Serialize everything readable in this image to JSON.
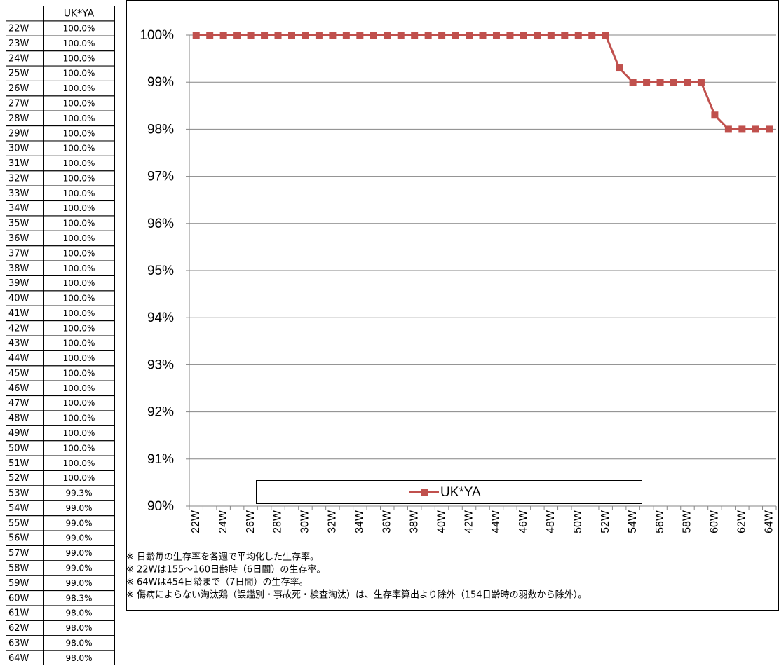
{
  "table": {
    "header": [
      "UK*YA"
    ],
    "rows": [
      [
        "22W",
        "100.0%"
      ],
      [
        "23W",
        "100.0%"
      ],
      [
        "24W",
        "100.0%"
      ],
      [
        "25W",
        "100.0%"
      ],
      [
        "26W",
        "100.0%"
      ],
      [
        "27W",
        "100.0%"
      ],
      [
        "28W",
        "100.0%"
      ],
      [
        "29W",
        "100.0%"
      ],
      [
        "30W",
        "100.0%"
      ],
      [
        "31W",
        "100.0%"
      ],
      [
        "32W",
        "100.0%"
      ],
      [
        "33W",
        "100.0%"
      ],
      [
        "34W",
        "100.0%"
      ],
      [
        "35W",
        "100.0%"
      ],
      [
        "36W",
        "100.0%"
      ],
      [
        "37W",
        "100.0%"
      ],
      [
        "38W",
        "100.0%"
      ],
      [
        "39W",
        "100.0%"
      ],
      [
        "40W",
        "100.0%"
      ],
      [
        "41W",
        "100.0%"
      ],
      [
        "42W",
        "100.0%"
      ],
      [
        "43W",
        "100.0%"
      ],
      [
        "44W",
        "100.0%"
      ],
      [
        "45W",
        "100.0%"
      ],
      [
        "46W",
        "100.0%"
      ],
      [
        "47W",
        "100.0%"
      ],
      [
        "48W",
        "100.0%"
      ],
      [
        "49W",
        "100.0%"
      ],
      [
        "50W",
        "100.0%"
      ],
      [
        "51W",
        "100.0%"
      ],
      [
        "52W",
        "100.0%"
      ],
      [
        "53W",
        "99.3%"
      ],
      [
        "54W",
        "99.0%"
      ],
      [
        "55W",
        "99.0%"
      ],
      [
        "56W",
        "99.0%"
      ],
      [
        "57W",
        "99.0%"
      ],
      [
        "58W",
        "99.0%"
      ],
      [
        "59W",
        "99.0%"
      ],
      [
        "60W",
        "98.3%"
      ],
      [
        "61W",
        "98.0%"
      ],
      [
        "62W",
        "98.0%"
      ],
      [
        "63W",
        "98.0%"
      ],
      [
        "64W",
        "98.0%"
      ]
    ]
  },
  "chart_data": {
    "type": "line",
    "categories": [
      "22W",
      null,
      "24W",
      null,
      "26W",
      null,
      "28W",
      null,
      "30W",
      null,
      "32W",
      null,
      "34W",
      null,
      "36W",
      null,
      "38W",
      null,
      "40W",
      null,
      "42W",
      null,
      "44W",
      null,
      "46W",
      null,
      "48W",
      null,
      "50W",
      null,
      "52W",
      null,
      "54W",
      null,
      "56W",
      null,
      "58W",
      null,
      "60W",
      null,
      "62W",
      null,
      "64W"
    ],
    "series": [
      {
        "name": "UK*YA",
        "color": "#c0504d",
        "values": [
          100,
          100,
          100,
          100,
          100,
          100,
          100,
          100,
          100,
          100,
          100,
          100,
          100,
          100,
          100,
          100,
          100,
          100,
          100,
          100,
          100,
          100,
          100,
          100,
          100,
          100,
          100,
          100,
          100,
          100,
          100,
          99.3,
          99,
          99,
          99,
          99,
          99,
          99,
          98.3,
          98,
          98,
          98,
          98
        ]
      }
    ],
    "ylim": [
      90,
      100
    ],
    "yticks": [
      {
        "value": 90,
        "label": "90%"
      },
      {
        "value": 91,
        "label": "91%"
      },
      {
        "value": 92,
        "label": "92%"
      },
      {
        "value": 93,
        "label": "93%"
      },
      {
        "value": 94,
        "label": "94%"
      },
      {
        "value": 95,
        "label": "95%"
      },
      {
        "value": 96,
        "label": "96%"
      },
      {
        "value": 97,
        "label": "97%"
      },
      {
        "value": 98,
        "label": "98%"
      },
      {
        "value": 99,
        "label": "99%"
      },
      {
        "value": 100,
        "label": "100%"
      }
    ],
    "grid": true,
    "legend": "bottom"
  },
  "notes": [
    "※ 日齢毎の生存率を各週で平均化した生存率。",
    "※ 22Wは155～160日齢時（6日間）の生存率。",
    "※ 64Wは454日齢まで（7日間）の生存率。",
    "※ 傷病によらない淘汰鶏（誤鑑別・事故死・検査淘汰）は、生存率算出より除外（154日齢時の羽数から除外）。"
  ]
}
